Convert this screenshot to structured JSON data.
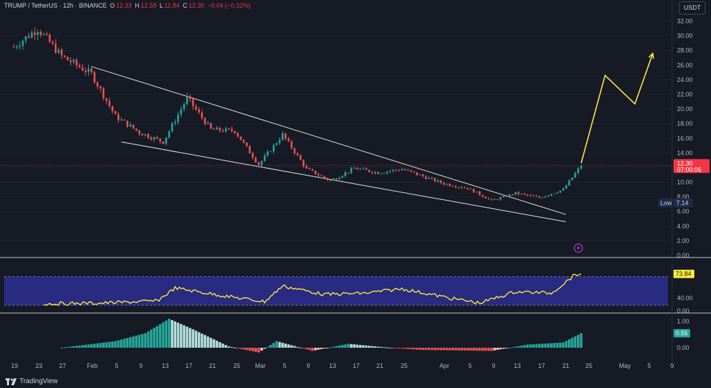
{
  "header": {
    "symbol": "TRUMP / TetherUS · 12h · BINANCE",
    "o_label": "O",
    "o": "12.33",
    "h_label": "H",
    "h": "12.58",
    "l_label": "L",
    "l": "11.84",
    "c_label": "C",
    "c": "12.30",
    "change": "−0.04 (−0.32%)"
  },
  "currency_button": "USDT",
  "price_axis_ticks": [
    "32.00",
    "30.00",
    "28.00",
    "26.00",
    "24.00",
    "22.00",
    "20.00",
    "18.00",
    "16.00",
    "14.00",
    "12.00",
    "10.00",
    "8.00",
    "6.00",
    "4.00",
    "2.00",
    "0.00"
  ],
  "last_price": {
    "value": "12.30",
    "countdown": "07:00:06"
  },
  "low_marker": {
    "label": "Low",
    "value": "7.14"
  },
  "rsi": {
    "value_label": "73.84",
    "ticks": [
      "40.00",
      "0.00"
    ]
  },
  "histogram": {
    "value_label": "0.55",
    "ticks": [
      "1.00",
      "0.00"
    ]
  },
  "time_axis": [
    "19",
    "23",
    "27",
    "Feb",
    "5",
    "9",
    "13",
    "17",
    "21",
    "25",
    "Mar",
    "5",
    "9",
    "13",
    "17",
    "21",
    "25",
    "Apr",
    "5",
    "9",
    "13",
    "17",
    "21",
    "25",
    "May",
    "5",
    "9"
  ],
  "footer_brand": "TradingView",
  "colors": {
    "up": "#26a69a",
    "down": "#ef5350",
    "projection": "#ffeb3b",
    "rsi_band": "#2a2e8c",
    "background": "#161a25"
  },
  "chart_data": [
    {
      "type": "candlestick",
      "title": "TRUMP / TetherUS · 12h · BINANCE",
      "ylabel": "USDT",
      "ylim": [
        0,
        33
      ],
      "x": [
        "Jan 19",
        "Jan 23",
        "Jan 27",
        "Feb 1",
        "Feb 5",
        "Feb 9",
        "Feb 13",
        "Feb 17",
        "Feb 21",
        "Feb 25",
        "Mar 1",
        "Mar 5",
        "Mar 9",
        "Mar 13",
        "Mar 17",
        "Mar 21",
        "Mar 25",
        "Apr 1",
        "Apr 5",
        "Apr 9",
        "Apr 13",
        "Apr 17",
        "Apr 21",
        "Apr 24"
      ],
      "close": [
        28.5,
        31.0,
        27.2,
        24.8,
        19.0,
        16.8,
        15.5,
        21.5,
        17.2,
        17.0,
        12.4,
        16.5,
        11.8,
        10.2,
        11.9,
        11.3,
        11.8,
        9.8,
        9.2,
        7.5,
        8.5,
        7.9,
        9.0,
        12.3
      ],
      "trendlines": [
        {
          "from": [
            "Feb 1",
            25.8
          ],
          "to": [
            "Apr 24",
            5.6
          ]
        },
        {
          "from": [
            "Feb 6",
            15.5
          ],
          "to": [
            "Apr 24",
            4.6
          ]
        }
      ],
      "projection": {
        "x": [
          "Apr 24",
          "Apr 28",
          "May 3",
          "May 6"
        ],
        "y": [
          12.6,
          24.6,
          20.7,
          27.6
        ]
      }
    },
    {
      "type": "line",
      "ylim": [
        20,
        90
      ],
      "x": [
        "Jan 24",
        "Feb 3",
        "Feb 12",
        "Feb 15",
        "Feb 24",
        "Mar 2",
        "Mar 5",
        "Mar 12",
        "Mar 19",
        "Mar 25",
        "Apr 2",
        "Apr 7",
        "Apr 13",
        "Apr 19",
        "Apr 23",
        "Apr 24"
      ],
      "values": [
        32,
        33,
        36,
        54,
        42,
        35,
        57,
        45,
        47,
        53,
        40,
        33,
        49,
        47,
        73,
        73.84
      ]
    },
    {
      "type": "bar",
      "ylim": [
        -0.5,
        1.2
      ],
      "x": [
        "Jan 27",
        "Feb 5",
        "Feb 10",
        "Feb 14",
        "Feb 18",
        "Feb 24",
        "Mar 1",
        "Mar 4",
        "Mar 10",
        "Mar 16",
        "Mar 22",
        "Mar 28",
        "Apr 3",
        "Apr 9",
        "Apr 15",
        "Apr 21",
        "Apr 24"
      ],
      "values": [
        0.0,
        0.25,
        0.55,
        1.1,
        0.7,
        0.05,
        -0.18,
        0.25,
        -0.12,
        0.15,
        0.02,
        -0.08,
        -0.1,
        -0.12,
        0.12,
        0.2,
        0.55
      ]
    }
  ]
}
